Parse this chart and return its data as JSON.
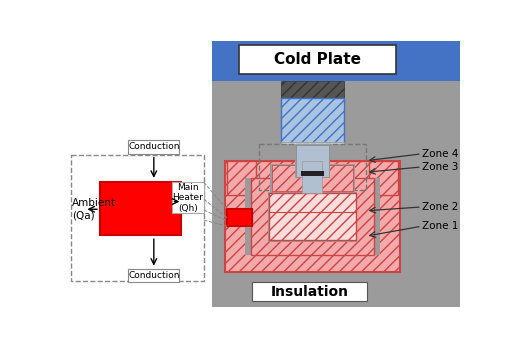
{
  "white": "#ffffff",
  "gray_bg": "#9b9b9b",
  "blue_dark": "#4472c4",
  "blue_hatch_fill": "#a8c4e0",
  "dark_gray_hatch": "#666666",
  "red_solid": "#ff0000",
  "red_hatch_fill": "#f4aaaa",
  "rod_color": "#b0c0d0",
  "black": "#000000",
  "cold_plate_label": "Cold Plate",
  "insulation_label": "Insulation",
  "zone_labels": [
    "Zone 4",
    "Zone 3",
    "Zone 2",
    "Zone 1"
  ],
  "ambient_label": "Ambient\n(Qa)",
  "main_heater_label": "Main\nHeater\n(Qh)",
  "conduction_label": "Conduction"
}
